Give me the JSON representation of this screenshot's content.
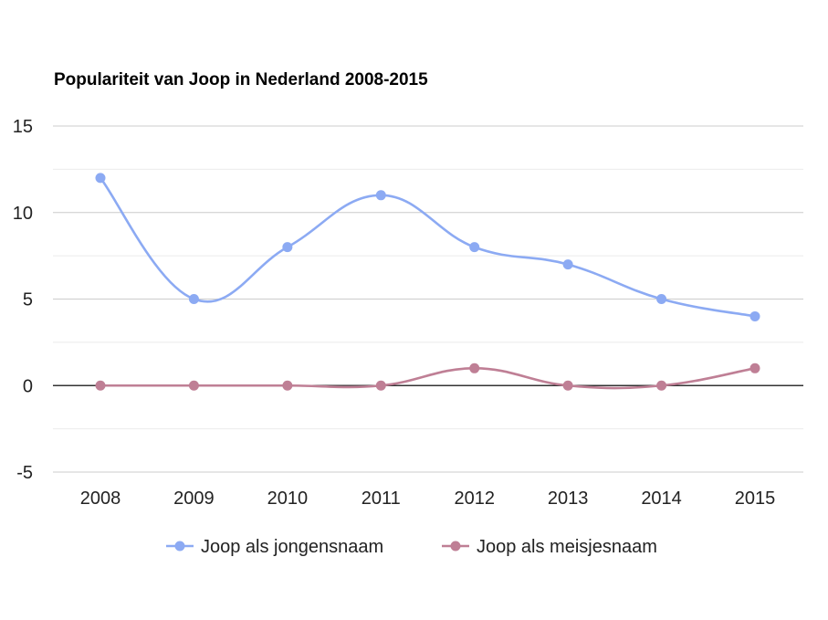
{
  "chart_data": {
    "type": "line",
    "title": "Populariteit van Joop in Nederland 2008-2015",
    "xlabel": "",
    "ylabel": "",
    "categories": [
      "2008",
      "2009",
      "2010",
      "2011",
      "2012",
      "2013",
      "2014",
      "2015"
    ],
    "ylim": [
      -5,
      15
    ],
    "yticks": [
      15,
      10,
      5,
      0,
      -5
    ],
    "grid": true,
    "legend_position": "bottom",
    "smooth": true,
    "series": [
      {
        "name": "Joop als jongensnaam",
        "color": "#8caaf3",
        "values": [
          12,
          5,
          8,
          11,
          8,
          7,
          5,
          4
        ]
      },
      {
        "name": "Joop als meisjesnaam",
        "color": "#bf7f95",
        "values": [
          0,
          0,
          0,
          0,
          1,
          0,
          0,
          1
        ]
      }
    ]
  }
}
